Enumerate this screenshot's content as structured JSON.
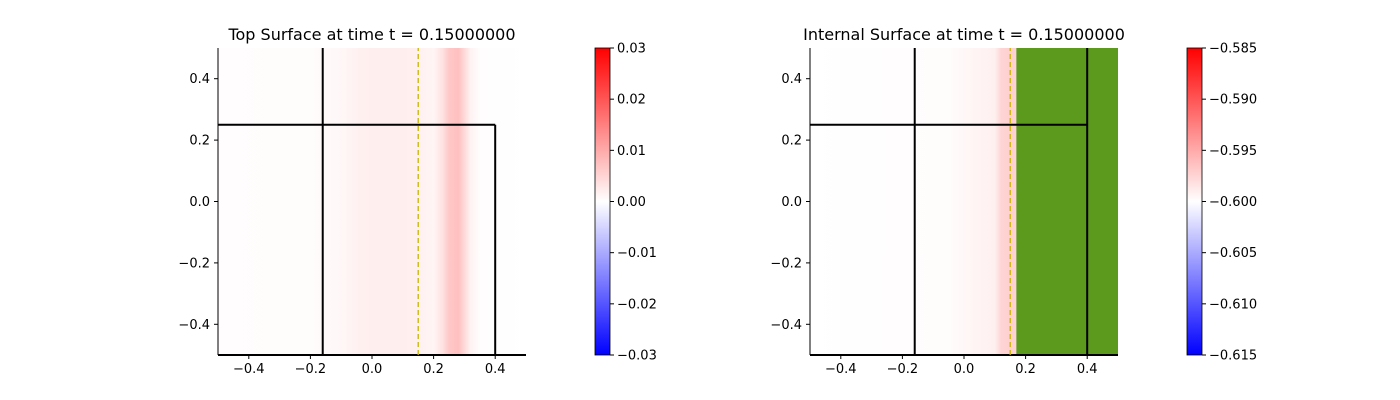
{
  "chart_data": [
    {
      "type": "heatmap",
      "title_prefix": "Top Surface at time t =",
      "title_value": "0.15000000",
      "xlim": [
        -0.5,
        0.5
      ],
      "ylim": [
        -0.5,
        0.5
      ],
      "xticks": [
        -0.4,
        -0.2,
        0.0,
        0.2,
        0.4
      ],
      "xtick_labels": [
        "−0.4",
        "−0.2",
        "0.0",
        "0.2",
        "0.4"
      ],
      "yticks": [
        -0.4,
        -0.2,
        0.0,
        0.2,
        0.4
      ],
      "ytick_labels": [
        "−0.4",
        "−0.2",
        "0.0",
        "0.2",
        "0.4"
      ],
      "field": {
        "axis": "x",
        "profile": [
          {
            "x": -0.5,
            "v": 0.0002
          },
          {
            "x": -0.2,
            "v": 0.0004
          },
          {
            "x": -0.1,
            "v": 0.0009
          },
          {
            "x": -0.05,
            "v": 0.0016
          },
          {
            "x": 0.0,
            "v": 0.002
          },
          {
            "x": 0.1,
            "v": 0.002
          },
          {
            "x": 0.15,
            "v": 0.0018
          },
          {
            "x": 0.2,
            "v": 0.0012
          },
          {
            "x": 0.23,
            "v": 0.0035
          },
          {
            "x": 0.25,
            "v": 0.0065
          },
          {
            "x": 0.28,
            "v": 0.0075
          },
          {
            "x": 0.3,
            "v": 0.0045
          },
          {
            "x": 0.32,
            "v": 0.0015
          },
          {
            "x": 0.35,
            "v": 0.0002
          },
          {
            "x": 0.5,
            "v": 0.0
          }
        ]
      },
      "lines": [
        {
          "x1": -0.16,
          "y1": -0.5,
          "x2": -0.16,
          "y2": 0.5,
          "color": "#000000",
          "style": "solid"
        },
        {
          "x1": 0.4,
          "y1": -0.5,
          "x2": 0.4,
          "y2": 0.25,
          "color": "#000000",
          "style": "solid"
        },
        {
          "x1": -0.5,
          "y1": 0.25,
          "x2": 0.4,
          "y2": 0.25,
          "color": "#000000",
          "style": "solid"
        },
        {
          "x1": -0.5,
          "y1": -0.5,
          "x2": 0.5,
          "y2": -0.5,
          "color": "#000000",
          "style": "solid"
        },
        {
          "x1": 0.15,
          "y1": -0.5,
          "x2": 0.15,
          "y2": 0.5,
          "color": "#c8b400",
          "style": "dashed"
        }
      ],
      "colorbar": {
        "vmin": -0.03,
        "vmax": 0.03,
        "cmap": "bwr",
        "ticks": [
          0.03,
          0.02,
          0.01,
          0.0,
          -0.01,
          -0.02,
          -0.03
        ],
        "tick_labels": [
          "0.03",
          "0.02",
          "0.01",
          "0.00",
          "−0.01",
          "−0.02",
          "−0.03"
        ]
      }
    },
    {
      "type": "heatmap",
      "title_prefix": "Internal Surface at time t =",
      "title_value": "0.15000000",
      "xlim": [
        -0.5,
        0.5
      ],
      "ylim": [
        -0.5,
        0.5
      ],
      "xticks": [
        -0.4,
        -0.2,
        0.0,
        0.2,
        0.4
      ],
      "xtick_labels": [
        "−0.4",
        "−0.2",
        "0.0",
        "0.2",
        "0.4"
      ],
      "yticks": [
        -0.4,
        -0.2,
        0.0,
        0.2,
        0.4
      ],
      "ytick_labels": [
        "−0.4",
        "−0.2",
        "0.0",
        "0.2",
        "0.4"
      ],
      "field": {
        "axis": "x",
        "profile": [
          {
            "x": -0.5,
            "v": -0.6
          },
          {
            "x": -0.05,
            "v": -0.5998
          },
          {
            "x": 0.0,
            "v": -0.5995
          },
          {
            "x": 0.05,
            "v": -0.5993
          },
          {
            "x": 0.1,
            "v": -0.5991
          },
          {
            "x": 0.12,
            "v": -0.5975
          },
          {
            "x": 0.15,
            "v": -0.5972
          },
          {
            "x": 0.17,
            "v": -0.5975
          }
        ],
        "mask": {
          "x_from": 0.17,
          "x_to": 0.5,
          "color": "#5c9a1e"
        }
      },
      "lines": [
        {
          "x1": -0.16,
          "y1": -0.5,
          "x2": -0.16,
          "y2": 0.5,
          "color": "#000000",
          "style": "solid"
        },
        {
          "x1": 0.4,
          "y1": -0.5,
          "x2": 0.4,
          "y2": 0.5,
          "color": "#000000",
          "style": "solid"
        },
        {
          "x1": -0.5,
          "y1": 0.25,
          "x2": 0.4,
          "y2": 0.25,
          "color": "#000000",
          "style": "solid"
        },
        {
          "x1": -0.5,
          "y1": -0.5,
          "x2": 0.5,
          "y2": -0.5,
          "color": "#000000",
          "style": "solid"
        },
        {
          "x1": 0.15,
          "y1": -0.5,
          "x2": 0.15,
          "y2": 0.5,
          "color": "#c8b400",
          "style": "dashed"
        }
      ],
      "colorbar": {
        "vmin": -0.615,
        "vmax": -0.585,
        "cmap": "bwr",
        "ticks": [
          -0.585,
          -0.59,
          -0.595,
          -0.6,
          -0.605,
          -0.61,
          -0.615
        ],
        "tick_labels": [
          "−0.585",
          "−0.590",
          "−0.595",
          "−0.600",
          "−0.605",
          "−0.610",
          "−0.615"
        ]
      }
    }
  ]
}
